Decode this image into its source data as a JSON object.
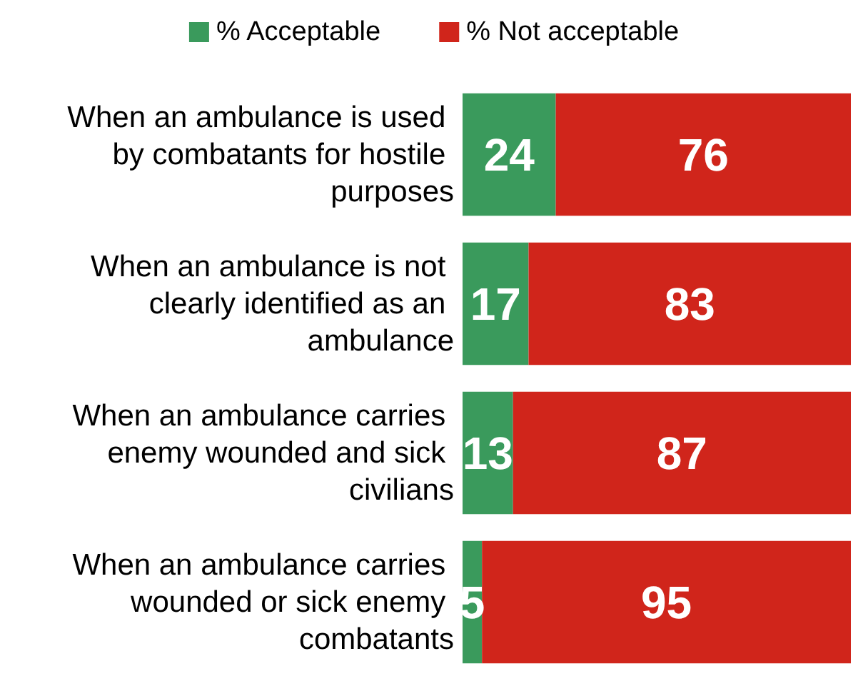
{
  "chart_data": {
    "type": "bar",
    "orientation": "horizontal",
    "stacked": true,
    "data_labels": true,
    "legend": "top",
    "tick_labels": "y",
    "xlim": [
      0,
      100
    ],
    "categories": [
      "When an ambulance is used by combatants for hostile purposes",
      "When an ambulance is not clearly identified as an ambulance",
      "When an ambulance carries enemy wounded and sick civilians",
      "When an ambulance carries wounded or sick enemy combatants"
    ],
    "series": [
      {
        "name": "% Acceptable",
        "color": "#3a9a5c",
        "values": [
          24,
          17,
          13,
          5
        ]
      },
      {
        "name": "% Not acceptable",
        "color": "#d0251b",
        "values": [
          76,
          83,
          87,
          95
        ]
      }
    ]
  }
}
